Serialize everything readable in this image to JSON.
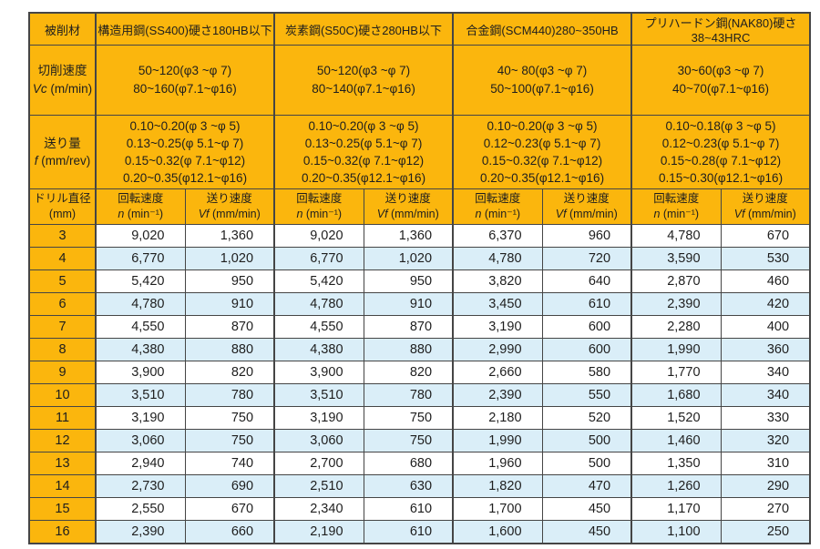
{
  "colors": {
    "header_orange": "#fbb60d",
    "row_blue": "#daeef8",
    "row_white": "#ffffff",
    "grid_border": "#454545",
    "text": "#1e1e1e"
  },
  "table": {
    "corner_label": "被削材",
    "materials": [
      {
        "name": "構造用鋼(SS400)硬さ180HB以下",
        "cutting_speed_lines": [
          "50~120(φ3 ~φ 7)",
          "80~160(φ7.1~φ16)"
        ],
        "feed_lines": [
          "0.10~0.20(φ 3 ~φ 5)",
          "0.13~0.25(φ 5.1~φ 7)",
          "0.15~0.32(φ 7.1~φ12)",
          "0.20~0.35(φ12.1~φ16)"
        ]
      },
      {
        "name": "炭素鋼(S50C)硬さ280HB以下",
        "cutting_speed_lines": [
          "50~120(φ3 ~φ 7)",
          "80~140(φ7.1~φ16)"
        ],
        "feed_lines": [
          "0.10~0.20(φ 3 ~φ 5)",
          "0.13~0.25(φ 5.1~φ 7)",
          "0.15~0.32(φ 7.1~φ12)",
          "0.20~0.35(φ12.1~φ16)"
        ]
      },
      {
        "name": "合金鋼(SCM440)280~350HB",
        "cutting_speed_lines": [
          "40~ 80(φ3 ~φ 7)",
          "50~100(φ7.1~φ16)"
        ],
        "feed_lines": [
          "0.10~0.20(φ 3 ~φ 5)",
          "0.12~0.23(φ 5.1~φ 7)",
          "0.15~0.32(φ 7.1~φ12)",
          "0.20~0.35(φ12.1~φ16)"
        ]
      },
      {
        "name": "プリハードン鋼(NAK80)硬さ38~43HRC",
        "cutting_speed_lines": [
          "30~60(φ3 ~φ 7)",
          "40~70(φ7.1~φ16)"
        ],
        "feed_lines": [
          "0.10~0.18(φ 3 ~φ 5)",
          "0.12~0.23(φ 5.1~φ 7)",
          "0.15~0.28(φ 7.1~φ12)",
          "0.15~0.30(φ12.1~φ16)"
        ]
      }
    ],
    "row_labels": {
      "cutting_speed_title": "切削速度",
      "cutting_speed_symbol": "Vc",
      "cutting_speed_unit": " (m/min)",
      "feed_title": "送り量",
      "feed_symbol": "f",
      "feed_unit": " (mm/rev)",
      "drill_dia_title": "ドリル直径",
      "drill_dia_unit": "(mm)"
    },
    "sub_headers": {
      "rotation_title": "回転速度",
      "rotation_symbol": "n",
      "rotation_unit": " (min⁻¹)",
      "feed_speed_title": "送り速度",
      "feed_speed_symbol": "Vf",
      "feed_speed_unit": " (mm/min)"
    },
    "rows": [
      {
        "dia": "3",
        "values": [
          "9,020",
          "1,360",
          "9,020",
          "1,360",
          "6,370",
          "960",
          "4,780",
          "670"
        ]
      },
      {
        "dia": "4",
        "values": [
          "6,770",
          "1,020",
          "6,770",
          "1,020",
          "4,780",
          "720",
          "3,590",
          "530"
        ]
      },
      {
        "dia": "5",
        "values": [
          "5,420",
          "950",
          "5,420",
          "950",
          "3,820",
          "640",
          "2,870",
          "460"
        ]
      },
      {
        "dia": "6",
        "values": [
          "4,780",
          "910",
          "4,780",
          "910",
          "3,450",
          "610",
          "2,390",
          "420"
        ]
      },
      {
        "dia": "7",
        "values": [
          "4,550",
          "870",
          "4,550",
          "870",
          "3,190",
          "600",
          "2,280",
          "400"
        ]
      },
      {
        "dia": "8",
        "values": [
          "4,380",
          "880",
          "4,380",
          "880",
          "2,990",
          "600",
          "1,990",
          "360"
        ]
      },
      {
        "dia": "9",
        "values": [
          "3,900",
          "820",
          "3,900",
          "820",
          "2,660",
          "580",
          "1,770",
          "340"
        ]
      },
      {
        "dia": "10",
        "values": [
          "3,510",
          "780",
          "3,510",
          "780",
          "2,390",
          "550",
          "1,680",
          "340"
        ]
      },
      {
        "dia": "11",
        "values": [
          "3,190",
          "750",
          "3,190",
          "750",
          "2,180",
          "520",
          "1,520",
          "330"
        ]
      },
      {
        "dia": "12",
        "values": [
          "3,060",
          "750",
          "3,060",
          "750",
          "1,990",
          "500",
          "1,460",
          "320"
        ]
      },
      {
        "dia": "13",
        "values": [
          "2,940",
          "740",
          "2,700",
          "680",
          "1,960",
          "500",
          "1,350",
          "310"
        ]
      },
      {
        "dia": "14",
        "values": [
          "2,730",
          "690",
          "2,510",
          "630",
          "1,820",
          "470",
          "1,260",
          "290"
        ]
      },
      {
        "dia": "15",
        "values": [
          "2,550",
          "670",
          "2,340",
          "610",
          "1,700",
          "450",
          "1,170",
          "270"
        ]
      },
      {
        "dia": "16",
        "values": [
          "2,390",
          "660",
          "2,190",
          "610",
          "1,600",
          "450",
          "1,100",
          "250"
        ]
      }
    ]
  }
}
